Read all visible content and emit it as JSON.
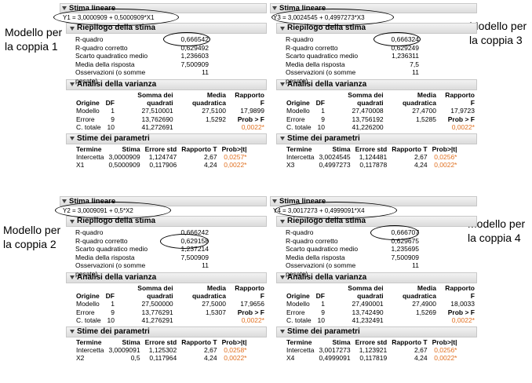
{
  "panels": [
    {
      "id": "p1",
      "header": "Stima lineare",
      "equation": "Y1 = 3,0000909 + 0,5000909*X1",
      "summary_title": "Riepilogo della stima",
      "summary": [
        {
          "label": "R-quadro",
          "value": "0,666542"
        },
        {
          "label": "R-quadro corretto",
          "value": "0,629492"
        },
        {
          "label": "Scarto quadratico medio",
          "value": "1,236603"
        },
        {
          "label": "Media della risposta",
          "value": "7,500909"
        },
        {
          "label": "Osservazioni (o somme pesate)",
          "value": "11"
        }
      ],
      "anova_title": "Analisi della varianza",
      "anova_headers": [
        "Origine",
        "DF",
        "Somma dei quadrati",
        "Media quadratica",
        "Rapporto F"
      ],
      "anova_rows": [
        [
          "Modello",
          "1",
          "27,510001",
          "27,5100",
          "17,9899"
        ],
        [
          "Errore",
          "9",
          "13,762690",
          "1,5292",
          "Prob > F"
        ],
        [
          "C. totale",
          "10",
          "41,272691",
          "",
          "0,0022*"
        ]
      ],
      "params_title": "Stime dei parametri",
      "params_headers": [
        "Termine",
        "Stima",
        "Errore std",
        "Rapporto T",
        "Prob>|t|"
      ],
      "params_rows": [
        [
          "Intercetta",
          "3,0000909",
          "1,124747",
          "2,67",
          "0,0257*"
        ],
        [
          "X1",
          "0,5000909",
          "0,117906",
          "4,24",
          "0,0022*"
        ]
      ]
    },
    {
      "id": "p3",
      "header": "Stima lineare",
      "equation": "Y3 = 3,0024545 + 0,4997273*X3",
      "summary_title": "Riepilogo della stima",
      "summary": [
        {
          "label": "R-quadro",
          "value": "0,666324"
        },
        {
          "label": "R-quadro corretto",
          "value": "0,629249"
        },
        {
          "label": "Scarto quadratico medio",
          "value": "1,236311"
        },
        {
          "label": "Media della risposta",
          "value": "7,5"
        },
        {
          "label": "Osservazioni (o somme pesate)",
          "value": "11"
        }
      ],
      "anova_title": "Analisi della varianza",
      "anova_headers": [
        "Origine",
        "DF",
        "Somma dei quadrati",
        "Media quadratica",
        "Rapporto F"
      ],
      "anova_rows": [
        [
          "Modello",
          "1",
          "27,470008",
          "27,4700",
          "17,9723"
        ],
        [
          "Errore",
          "9",
          "13,756192",
          "1,5285",
          "Prob > F"
        ],
        [
          "C. totale",
          "10",
          "41,226200",
          "",
          "0,0022*"
        ]
      ],
      "params_title": "Stime dei parametri",
      "params_headers": [
        "Termine",
        "Stima",
        "Errore std",
        "Rapporto T",
        "Prob>|t|"
      ],
      "params_rows": [
        [
          "Intercetta",
          "3,0024545",
          "1,124481",
          "2,67",
          "0,0256*"
        ],
        [
          "X3",
          "0,4997273",
          "0,117878",
          "4,24",
          "0,0022*"
        ]
      ]
    },
    {
      "id": "p2",
      "header": "Stima lineare",
      "equation": "Y2 = 3,0009091 + 0,5*X2",
      "summary_title": "Riepilogo della stima",
      "summary": [
        {
          "label": "R-quadro",
          "value": "0,666242"
        },
        {
          "label": "R-quadro corretto",
          "value": "0,629158"
        },
        {
          "label": "Scarto quadratico medio",
          "value": "1,237214"
        },
        {
          "label": "Media della risposta",
          "value": "7,500909"
        },
        {
          "label": "Osservazioni (o somme pesate)",
          "value": "11"
        }
      ],
      "anova_title": "Analisi della varianza",
      "anova_headers": [
        "Origine",
        "DF",
        "Somma dei quadrati",
        "Media quadratica",
        "Rapporto F"
      ],
      "anova_rows": [
        [
          "Modello",
          "1",
          "27,500000",
          "27,5000",
          "17,9656"
        ],
        [
          "Errore",
          "9",
          "13,776291",
          "1,5307",
          "Prob > F"
        ],
        [
          "C. totale",
          "10",
          "41,276291",
          "",
          "0,0022*"
        ]
      ],
      "params_title": "Stime dei parametri",
      "params_headers": [
        "Termine",
        "Stima",
        "Errore std",
        "Rapporto T",
        "Prob>|t|"
      ],
      "params_rows": [
        [
          "Intercetta",
          "3,0009091",
          "1,125302",
          "2,67",
          "0,0258*"
        ],
        [
          "X2",
          "0,5",
          "0,117964",
          "4,24",
          "0,0022*"
        ]
      ]
    },
    {
      "id": "p4",
      "header": "Stima lineare",
      "equation": "Y4 = 3,0017273 + 0,4999091*X4",
      "summary_title": "Riepilogo della stima",
      "summary": [
        {
          "label": "R-quadro",
          "value": "0,666707"
        },
        {
          "label": "R-quadro corretto",
          "value": "0,629675"
        },
        {
          "label": "Scarto quadratico medio",
          "value": "1,235695"
        },
        {
          "label": "Media della risposta",
          "value": "7,500909"
        },
        {
          "label": "Osservazioni (o somme pesate)",
          "value": "11"
        }
      ],
      "anova_title": "Analisi della varianza",
      "anova_headers": [
        "Origine",
        "DF",
        "Somma dei quadrati",
        "Media quadratica",
        "Rapporto F"
      ],
      "anova_rows": [
        [
          "Modello",
          "1",
          "27,490001",
          "27,4900",
          "18,0033"
        ],
        [
          "Errore",
          "9",
          "13,742490",
          "1,5269",
          "Prob > F"
        ],
        [
          "C. totale",
          "10",
          "41,232491",
          "",
          "0,0022*"
        ]
      ],
      "params_title": "Stime dei parametri",
      "params_headers": [
        "Termine",
        "Stima",
        "Errore std",
        "Rapporto T",
        "Prob>|t|"
      ],
      "params_rows": [
        [
          "Intercetta",
          "3,0017273",
          "1,123921",
          "2,67",
          "0,0256*"
        ],
        [
          "X4",
          "0,4999091",
          "0,117819",
          "4,24",
          "0,0022*"
        ]
      ]
    }
  ],
  "side_labels": {
    "p1": [
      "Modello per",
      "la coppia 1"
    ],
    "p3": [
      "Modello per",
      "la coppia 3"
    ],
    "p2": [
      "Modello per",
      "la coppia 2"
    ],
    "p4": [
      "Modello per",
      "la coppia 4"
    ]
  },
  "colors": {
    "significant": "#e07020",
    "header_bg": "#dcdcdc"
  }
}
